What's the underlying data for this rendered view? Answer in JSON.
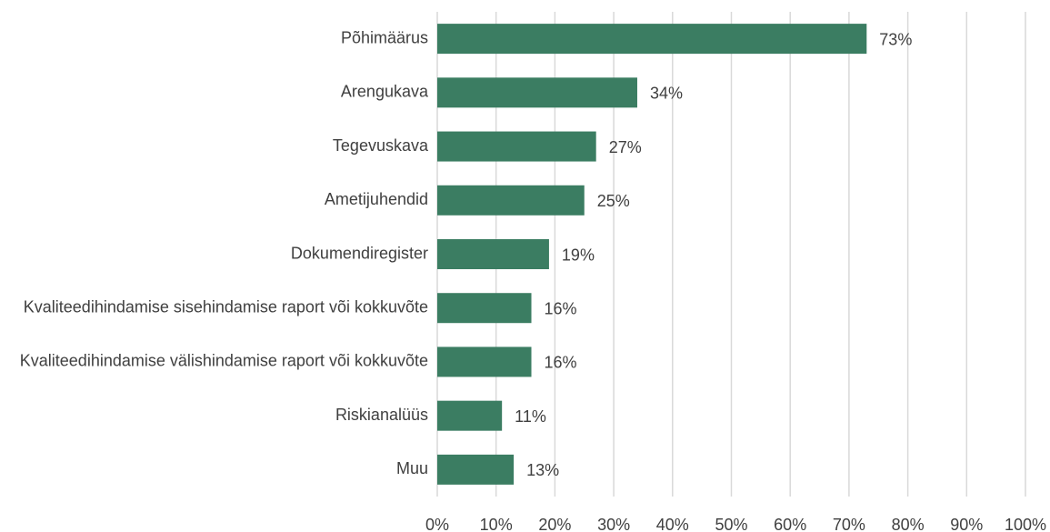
{
  "chart_data": {
    "type": "bar",
    "orientation": "horizontal",
    "categories": [
      "Põhimäärus",
      "Arengukava",
      "Tegevuskava",
      "Ametijuhendid",
      "Dokumendiregister",
      "Kvaliteedihindamise sisehindamise raport või kokkuvõte",
      "Kvaliteedihindamise välishindamise raport või kokkuvõte",
      "Riskianalüüs",
      "Muu"
    ],
    "values": [
      73,
      34,
      27,
      25,
      19,
      16,
      16,
      11,
      13
    ],
    "value_labels": [
      "73%",
      "34%",
      "27%",
      "25%",
      "19%",
      "16%",
      "16%",
      "11%",
      "13%"
    ],
    "color": "#3b7d62",
    "xlim": [
      0,
      100
    ],
    "xticks": [
      {
        "value": 0,
        "label": "0%"
      },
      {
        "value": 10,
        "label": "10%"
      },
      {
        "value": 20,
        "label": "20%"
      },
      {
        "value": 30,
        "label": "30%"
      },
      {
        "value": 40,
        "label": "40%"
      },
      {
        "value": 50,
        "label": "50%"
      },
      {
        "value": 60,
        "label": "60%"
      },
      {
        "value": 70,
        "label": "70%"
      },
      {
        "value": 80,
        "label": "80%"
      },
      {
        "value": 90,
        "label": "90%"
      },
      {
        "value": 100,
        "label": "100%"
      }
    ],
    "grid": true
  }
}
